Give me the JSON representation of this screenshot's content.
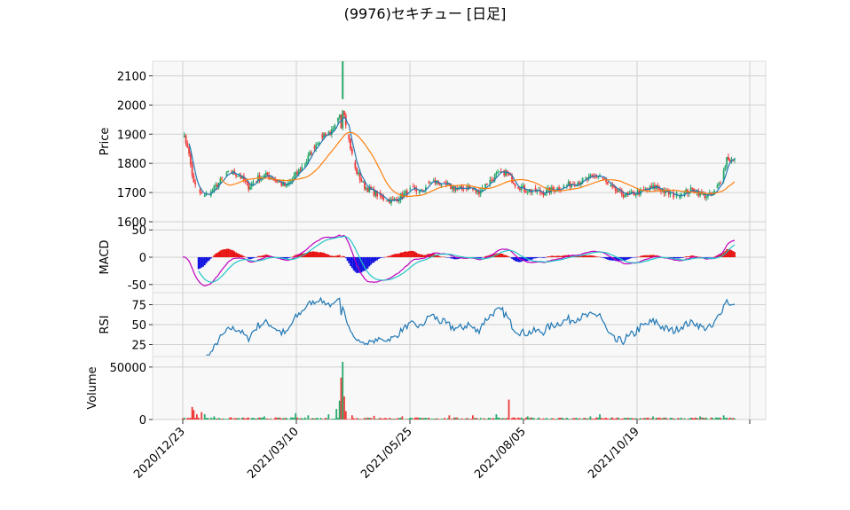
{
  "chart_data": {
    "title": "(9976)セキチュー [日足]",
    "type": "candlestick",
    "x_tick_labels": [
      "2020/12/23",
      "2021/03/10",
      "2021/05/25",
      "2021/08/05",
      "2021/10/19"
    ],
    "panels": [
      {
        "id": "price",
        "ylabel": "Price",
        "ylim": [
          1600,
          2150
        ],
        "yticks": [
          1600,
          1700,
          1800,
          1900,
          2000,
          2100
        ],
        "series": [
          {
            "name": "close",
            "kind": "candles",
            "up_color": "#26a96c",
            "down_color": "#ef3b3b"
          },
          {
            "name": "sma-short",
            "kind": "line",
            "color": "#1f77b4"
          },
          {
            "name": "sma-long",
            "kind": "line",
            "color": "#ff7f0e"
          }
        ],
        "anchors": [
          [
            0,
            1900
          ],
          [
            3,
            1860
          ],
          [
            7,
            1730
          ],
          [
            12,
            1690
          ],
          [
            18,
            1700
          ],
          [
            24,
            1740
          ],
          [
            30,
            1770
          ],
          [
            36,
            1760
          ],
          [
            42,
            1720
          ],
          [
            48,
            1750
          ],
          [
            54,
            1760
          ],
          [
            60,
            1740
          ],
          [
            66,
            1720
          ],
          [
            72,
            1760
          ],
          [
            78,
            1800
          ],
          [
            84,
            1860
          ],
          [
            90,
            1900
          ],
          [
            96,
            1910
          ],
          [
            100,
            1960
          ],
          [
            103,
            1970
          ],
          [
            106,
            1880
          ],
          [
            110,
            1780
          ],
          [
            116,
            1720
          ],
          [
            122,
            1700
          ],
          [
            128,
            1680
          ],
          [
            134,
            1670
          ],
          [
            140,
            1690
          ],
          [
            146,
            1710
          ],
          [
            152,
            1700
          ],
          [
            158,
            1740
          ],
          [
            164,
            1730
          ],
          [
            170,
            1720
          ],
          [
            176,
            1710
          ],
          [
            182,
            1720
          ],
          [
            188,
            1700
          ],
          [
            194,
            1730
          ],
          [
            200,
            1760
          ],
          [
            206,
            1770
          ],
          [
            212,
            1730
          ],
          [
            218,
            1710
          ],
          [
            224,
            1705
          ],
          [
            230,
            1700
          ],
          [
            236,
            1710
          ],
          [
            242,
            1720
          ],
          [
            248,
            1730
          ],
          [
            254,
            1740
          ],
          [
            260,
            1750
          ],
          [
            266,
            1760
          ],
          [
            272,
            1720
          ],
          [
            278,
            1700
          ],
          [
            284,
            1690
          ],
          [
            290,
            1700
          ],
          [
            296,
            1710
          ],
          [
            302,
            1720
          ],
          [
            308,
            1700
          ],
          [
            314,
            1690
          ],
          [
            320,
            1700
          ],
          [
            326,
            1710
          ],
          [
            332,
            1690
          ],
          [
            338,
            1690
          ],
          [
            344,
            1750
          ],
          [
            347,
            1820
          ],
          [
            350,
            1810
          ]
        ]
      },
      {
        "id": "macd",
        "ylabel": "MACD",
        "ylim": [
          -65,
          65
        ],
        "yticks": [
          -50,
          0,
          50
        ],
        "series": [
          {
            "name": "macd",
            "color": "#c000c0"
          },
          {
            "name": "signal",
            "color": "#22c5c5"
          },
          {
            "name": "histogram",
            "up_color": "#e8100e",
            "down_color": "#1010e0"
          }
        ]
      },
      {
        "id": "rsi",
        "ylabel": "RSI",
        "ylim": [
          10,
          90
        ],
        "yticks": [
          25,
          50,
          75
        ],
        "series": [
          {
            "name": "rsi",
            "color": "#1f77b4"
          }
        ]
      },
      {
        "id": "volume",
        "ylabel": "Volume",
        "ylim": [
          0,
          60000
        ],
        "yticks": [
          0,
          50000
        ],
        "series": [
          {
            "name": "volume",
            "up_color": "#26a96c",
            "down_color": "#ef3b3b"
          }
        ],
        "spikes": [
          [
            6,
            12000
          ],
          [
            7,
            9000
          ],
          [
            9,
            5000
          ],
          [
            12,
            7000
          ],
          [
            14,
            5000
          ],
          [
            20,
            3000
          ],
          [
            52,
            3000
          ],
          [
            72,
            6000
          ],
          [
            80,
            4000
          ],
          [
            93,
            5000
          ],
          [
            98,
            10000
          ],
          [
            100,
            18000
          ],
          [
            101,
            40000
          ],
          [
            102,
            55000
          ],
          [
            103,
            22000
          ],
          [
            104,
            8000
          ],
          [
            108,
            4000
          ],
          [
            122,
            3500
          ],
          [
            140,
            3000
          ],
          [
            170,
            4000
          ],
          [
            185,
            4000
          ],
          [
            200,
            5000
          ],
          [
            208,
            19000
          ],
          [
            220,
            3000
          ],
          [
            260,
            3000
          ],
          [
            266,
            5000
          ],
          [
            300,
            3000
          ],
          [
            330,
            3000
          ],
          [
            345,
            4000
          ]
        ]
      }
    ]
  }
}
